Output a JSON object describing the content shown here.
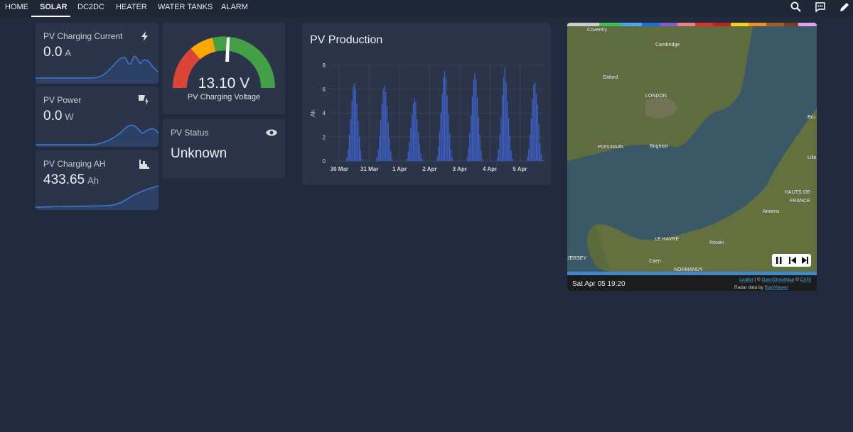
{
  "nav": {
    "tabs": [
      "HOME",
      "SOLAR",
      "DC2DC",
      "HEATER",
      "WATER TANKS",
      "ALARM"
    ]
  },
  "cards": {
    "pv_current": {
      "title": "PV Charging Current",
      "value": "0.0",
      "unit": "A"
    },
    "pv_power": {
      "title": "PV Power",
      "value": "0.0",
      "unit": "W"
    },
    "pv_ah": {
      "title": "PV Charging AH",
      "value": "433.65",
      "unit": "Ah"
    }
  },
  "gauge": {
    "value": "13.10",
    "unit": "V",
    "label": "PV Charging Voltage"
  },
  "status": {
    "title": "PV Status",
    "value": "Unknown"
  },
  "pv_production": {
    "type": "bar",
    "title": "PV Production",
    "y_label": "Ah",
    "color": "#3d5fc4",
    "grid": true,
    "xlim": [
      -7,
      163
    ],
    "ylim": [
      0,
      8
    ],
    "yticks": [
      0,
      2,
      4,
      6,
      8
    ],
    "xticks": [
      {
        "value": 0,
        "label": "30 Mar"
      },
      {
        "value": 24,
        "label": "31 Mar"
      },
      {
        "value": 48,
        "label": "1 Apr"
      },
      {
        "value": 72,
        "label": "2 Apr"
      },
      {
        "value": 96,
        "label": "3 Apr"
      },
      {
        "value": 120,
        "label": "4 Apr"
      },
      {
        "value": 144,
        "label": "5 Apr"
      }
    ],
    "x": [
      6,
      7,
      8,
      9,
      10,
      11,
      12,
      13,
      14,
      15,
      16,
      17,
      18,
      30,
      31,
      32,
      33,
      34,
      35,
      36,
      37,
      38,
      39,
      40,
      41,
      42,
      54,
      55,
      56,
      57,
      58,
      59,
      60,
      61,
      62,
      63,
      64,
      65,
      66,
      78,
      79,
      80,
      81,
      82,
      83,
      84,
      85,
      86,
      87,
      88,
      89,
      90,
      102,
      103,
      104,
      105,
      106,
      107,
      108,
      109,
      110,
      111,
      112,
      113,
      114,
      126,
      127,
      128,
      129,
      130,
      131,
      132,
      133,
      134,
      135,
      136,
      137,
      138,
      150,
      151,
      152,
      153,
      154,
      155,
      156,
      157,
      158,
      159,
      160,
      161,
      162
    ],
    "values": [
      0.3,
      1.0,
      2.2,
      3.5,
      5.0,
      6.2,
      6.5,
      6.0,
      4.8,
      3.4,
      2.0,
      0.9,
      0.2,
      0.3,
      1.0,
      2.1,
      3.4,
      4.8,
      6.0,
      6.3,
      5.8,
      4.6,
      3.2,
      1.9,
      0.8,
      0.2,
      0.2,
      0.8,
      1.6,
      2.8,
      3.9,
      4.8,
      5.2,
      4.9,
      3.5,
      2.4,
      1.4,
      0.6,
      0.2,
      0.4,
      1.2,
      2.5,
      4.0,
      5.6,
      7.0,
      7.5,
      7.0,
      5.5,
      3.9,
      2.3,
      1.0,
      0.3,
      0.3,
      1.1,
      2.3,
      3.8,
      5.4,
      6.8,
      7.3,
      6.8,
      5.3,
      3.7,
      2.2,
      0.9,
      0.2,
      0.3,
      1.0,
      2.2,
      3.7,
      5.5,
      7.0,
      7.8,
      6.6,
      5.0,
      3.6,
      2.1,
      0.9,
      0.2,
      0.3,
      1.0,
      2.2,
      3.6,
      5.2,
      6.4,
      6.6,
      5.6,
      4.7,
      3.1,
      1.5,
      0.6,
      0.1
    ]
  },
  "map": {
    "places": [
      "Coventry",
      "Cambridge",
      "Oxford",
      "LONDON",
      "Portsmouth",
      "Brighton",
      "LE HAVRE",
      "Rouen",
      "Caen",
      "NORMANDY",
      "Amiens",
      "HAUTS-DE-",
      "FRANCE",
      "JERSEY",
      "Lille",
      "Bru"
    ],
    "timestamp": "Sat Apr 05 19:20",
    "attribution": {
      "leaflet": "Leaflet",
      "sep": "| ©",
      "osm": "OpenStreetMap",
      "copy": "©",
      "esri": "ESRI",
      "radar": "Radar data by",
      "rainviewer": "RainViewer"
    }
  }
}
